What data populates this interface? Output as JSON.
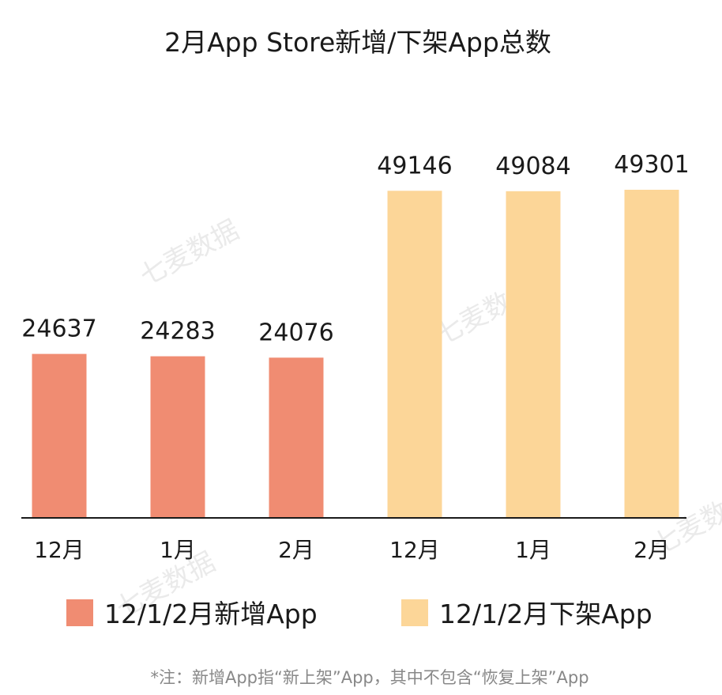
{
  "chart_data": {
    "type": "bar",
    "title": "2月App Store新增/下架App总数",
    "categories": [
      "12月",
      "1月",
      "2月",
      "12月",
      "1月",
      "2月"
    ],
    "series": [
      {
        "name": "12/1/2月新增App",
        "color": "#f08c72",
        "values": [
          24637,
          24283,
          24076,
          null,
          null,
          null
        ]
      },
      {
        "name": "12/1/2月下架App",
        "color": "#fcd698",
        "values": [
          null,
          null,
          null,
          49146,
          49084,
          49301
        ]
      }
    ],
    "ylim": [
      0,
      52000
    ],
    "grid": false,
    "legend_position": "bottom"
  },
  "note": "*注：新增App指“新上架”App，其中不包含“恢复上架”App",
  "watermark": "七麦数据"
}
